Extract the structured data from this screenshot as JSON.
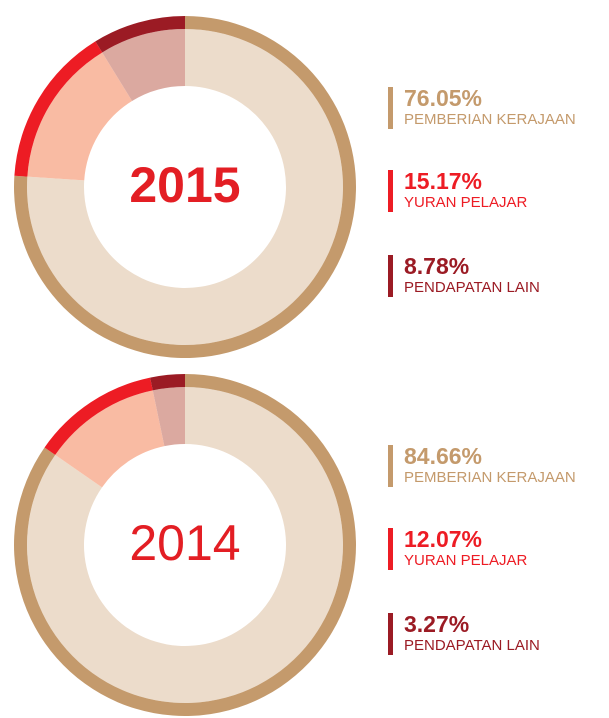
{
  "chart_data": [
    {
      "type": "pie",
      "center_label": "2015",
      "categories": [
        "PEMBERIAN KERAJAAN",
        "YURAN PELAJAR",
        "PENDAPATAN LAIN"
      ],
      "values": [
        76.05,
        15.17,
        8.78
      ],
      "value_labels": [
        "76.05%",
        "15.17%",
        "8.78%"
      ],
      "colors": [
        "#c49a6c",
        "#ed1c24",
        "#9b1b24"
      ],
      "inner_colors": [
        "#ecdccb",
        "#f9bba3",
        "#dba9a0"
      ]
    },
    {
      "type": "pie",
      "center_label": "2014",
      "categories": [
        "PEMBERIAN KERAJAAN",
        "YURAN PELAJAR",
        "PENDAPATAN LAIN"
      ],
      "values": [
        84.66,
        12.07,
        3.27
      ],
      "value_labels": [
        "84.66%",
        "12.07%",
        "3.27%"
      ],
      "colors": [
        "#c49a6c",
        "#ed1c24",
        "#9b1b24"
      ],
      "inner_colors": [
        "#ecdccb",
        "#f9bba3",
        "#dba9a0"
      ]
    }
  ]
}
